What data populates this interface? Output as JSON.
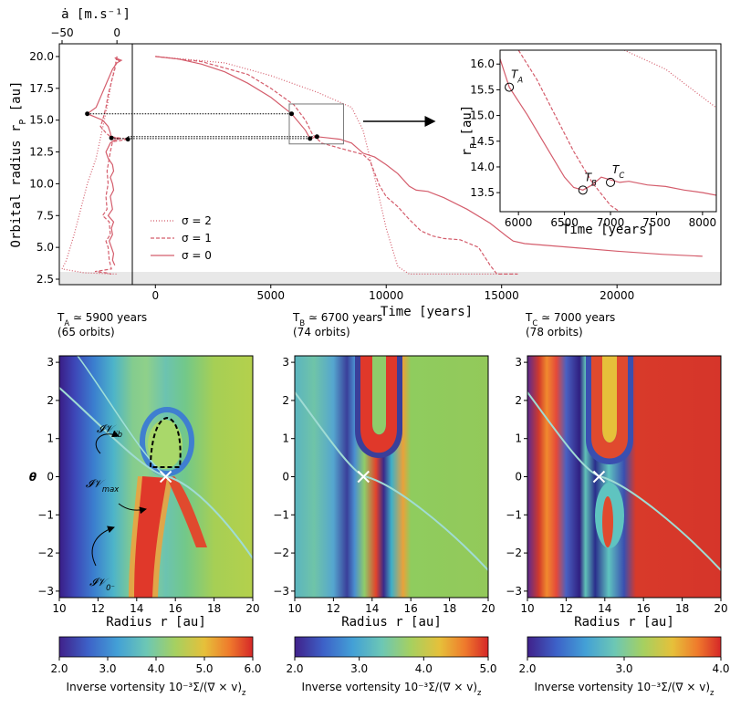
{
  "chart_data": [
    {
      "type": "line",
      "xlabel": "ȧ [m.s⁻¹]",
      "ylabel": "Orbital radius r",
      "ylabel_sub": "P",
      "ylabel_unit": " [au]",
      "xlim": [
        -52.5,
        14
      ],
      "ylim": [
        2.07,
        21.0
      ],
      "xticks": [
        {
          "value": -50,
          "label": "−50"
        },
        0
      ],
      "yticks": [
        2.5,
        {
          "value": 5,
          "label": "5.0"
        },
        7.5,
        {
          "value": 10,
          "label": "10.0"
        },
        12.5,
        {
          "value": 15,
          "label": "15.0"
        },
        17.5,
        {
          "value": 20,
          "label": "20.0"
        }
      ],
      "series": [
        {
          "color": "#d45d6c",
          "style": "dotted",
          "x": [
            0,
            -5,
            -9,
            -14,
            -19,
            -27,
            -33,
            -39,
            -46,
            -50,
            -30,
            0
          ],
          "values": [
            20,
            18,
            16,
            14,
            12,
            10,
            8,
            6,
            4,
            3.3,
            3.0,
            2.9
          ]
        },
        {
          "color": "#d45d6c",
          "style": "dashed",
          "x": [
            0,
            -2,
            -5,
            -8,
            -10,
            -13,
            -15,
            -10,
            -6,
            10,
            -4,
            -6,
            -7,
            -9,
            -8,
            -10,
            -9,
            -13,
            -7,
            -6,
            -10,
            -8,
            -7,
            -5,
            -20,
            -10,
            -5
          ],
          "values": [
            20,
            19,
            18,
            17,
            16,
            15,
            14.5,
            14,
            13.7,
            13.5,
            13.3,
            12.5,
            12,
            11,
            10,
            9,
            8,
            7.5,
            7,
            6,
            5.5,
            5,
            4,
            3.3,
            3.1,
            3.0,
            2.9
          ]
        },
        {
          "color": "#d45d6c",
          "style": "solid",
          "x": [
            -1,
            3,
            -2,
            4,
            0,
            -4,
            -9,
            -14,
            -19,
            -27,
            -13,
            -8,
            -6,
            -5,
            3,
            -3,
            -6,
            -10,
            -8,
            -4,
            -3,
            -6,
            -4,
            -3,
            -6,
            -5,
            -4,
            -8,
            -3,
            -5,
            -4,
            -7,
            -5,
            -3,
            -4,
            -2
          ],
          "values": [
            19.9,
            19.6,
            19.9,
            19.7,
            19.5,
            19.0,
            18.0,
            17.0,
            16.0,
            15.5,
            15.0,
            14.5,
            14.0,
            13.65,
            13.55,
            13.4,
            13.2,
            12.5,
            12.0,
            11.5,
            11.0,
            10.5,
            10.0,
            9.5,
            9.0,
            8.5,
            8.0,
            7.5,
            7.0,
            6.5,
            6.0,
            5.5,
            5.0,
            4.5,
            4.0,
            3.6
          ]
        }
      ],
      "points": {
        "x": [
          -27,
          -5,
          10
        ],
        "values": [
          15.5,
          13.6,
          13.5
        ]
      }
    },
    {
      "type": "line",
      "xlabel": "Time [years]",
      "xlim": [
        -1000,
        24500
      ],
      "ylim": [
        2.07,
        21.0
      ],
      "xticks": [
        0,
        5000,
        10000,
        15000,
        20000
      ],
      "legend": "lower left",
      "series": [
        {
          "name": "σ = 2",
          "color": "#d45d6c",
          "style": "dotted",
          "x": [
            0,
            3000,
            5000,
            7000,
            8500,
            9000,
            9500,
            10000,
            10500,
            11000,
            15700
          ],
          "values": [
            20,
            19.5,
            18.5,
            17.2,
            16.0,
            14.2,
            10.5,
            6.5,
            3.5,
            2.9,
            2.9
          ]
        },
        {
          "name": "σ = 1",
          "color": "#d45d6c",
          "style": "dashed",
          "x": [
            0,
            2000,
            4000,
            5000,
            6000,
            6500,
            6800,
            7200,
            8000,
            9000,
            9300,
            9700,
            10000,
            10500,
            11000,
            11500,
            12000,
            12500,
            13200,
            14000,
            14500,
            14800,
            15700
          ],
          "values": [
            20,
            19.6,
            18.6,
            17.5,
            16.2,
            15.0,
            13.9,
            13.2,
            12.8,
            12.3,
            11.8,
            9.9,
            9.0,
            8.2,
            7.2,
            6.3,
            5.9,
            5.7,
            5.6,
            5.0,
            3.6,
            2.9,
            2.9
          ]
        },
        {
          "name": "σ = 0",
          "color": "#d45d6c",
          "style": "solid",
          "x": [
            0,
            1000,
            2000,
            3000,
            4000,
            5000,
            5900,
            6500,
            6700,
            7000,
            7500,
            8000,
            8500,
            9000,
            9500,
            10000,
            10500,
            11000,
            11300,
            11800,
            12500,
            13500,
            14500,
            15200,
            15500,
            16000,
            18000,
            20000,
            22000,
            23700
          ],
          "values": [
            20,
            19.8,
            19.4,
            18.8,
            17.9,
            16.8,
            15.5,
            14.2,
            13.55,
            13.7,
            13.6,
            13.5,
            13.2,
            12.4,
            12.1,
            11.5,
            10.8,
            9.8,
            9.5,
            9.4,
            8.9,
            8.0,
            6.9,
            5.9,
            5.5,
            5.3,
            5.0,
            4.7,
            4.45,
            4.3
          ]
        }
      ],
      "points": {
        "x": [
          5900,
          6700,
          7000
        ],
        "values": [
          15.5,
          13.55,
          13.7
        ]
      }
    },
    {
      "type": "line",
      "xlabel": "Time [years]",
      "ylabel": "r",
      "ylabel_sub": "P",
      "ylabel_unit": " [au]",
      "xlim": [
        5800,
        8150
      ],
      "ylim": [
        13.13,
        16.27
      ],
      "xticks": [
        6000,
        6500,
        7000,
        7500,
        8000
      ],
      "yticks": [
        13.5,
        {
          "value": 14,
          "label": "14.0"
        },
        14.5,
        {
          "value": 15,
          "label": "15.0"
        },
        15.5,
        {
          "value": 16,
          "label": "16.0"
        }
      ],
      "series": [
        {
          "color": "#d45d6c",
          "style": "dotted",
          "x": [
            7150,
            7600,
            8150
          ],
          "values": [
            16.27,
            15.9,
            15.15
          ]
        },
        {
          "color": "#d45d6c",
          "style": "dashed",
          "x": [
            6000,
            6200,
            6400,
            6600,
            6800,
            7000,
            7100
          ],
          "values": [
            16.27,
            15.7,
            15.0,
            14.3,
            13.7,
            13.25,
            13.13
          ]
        },
        {
          "color": "#d45d6c",
          "style": "solid",
          "x": [
            5800,
            5900,
            6100,
            6300,
            6500,
            6600,
            6700,
            6800,
            6900,
            7000,
            7100,
            7200,
            7400,
            7600,
            7800,
            8000,
            8150
          ],
          "values": [
            16.1,
            15.55,
            15.0,
            14.4,
            13.8,
            13.6,
            13.55,
            13.65,
            13.8,
            13.75,
            13.7,
            13.72,
            13.65,
            13.62,
            13.55,
            13.5,
            13.45
          ]
        }
      ],
      "points": {
        "x": [
          5900,
          6700,
          7000
        ],
        "values": [
          15.55,
          13.55,
          13.7
        ],
        "labels": [
          {
            "text": "T",
            "sub": "A"
          },
          {
            "text": "T",
            "sub": "B"
          },
          {
            "text": "T",
            "sub": "C"
          }
        ]
      }
    },
    {
      "type": "heatmap",
      "label": "T",
      "label_sub": "A",
      "title": " ≃ 5900 years",
      "subtitle": "(65 orbits)",
      "xlabel": "Radius r [au]",
      "ylabel": "θ",
      "xlim": [
        10,
        20
      ],
      "ylim": [
        -3.17,
        3.17
      ],
      "xticks": [
        10,
        12,
        14,
        16,
        18,
        20
      ],
      "yticks": [
        {
          "value": -3,
          "label": "−3"
        },
        {
          "value": -2,
          "label": "−2"
        },
        {
          "value": -1,
          "label": "−1"
        },
        0,
        1,
        2,
        3
      ],
      "planet": {
        "r": 15.5,
        "theta": 0
      },
      "annotations": [
        {
          "text": "𝓘𝒱",
          "sub": "lib"
        },
        {
          "text": "𝓘𝒱",
          "sub": "max"
        },
        {
          "text": "𝓘𝒱",
          "sub": "0⁻"
        }
      ],
      "colorbar": {
        "label": "Inverse vortensity 10⁻³Σ/(∇ × v)",
        "label_sub": "z",
        "lim": [
          2,
          6
        ],
        "ticks": [
          {
            "value": 2,
            "label": "2.0"
          },
          {
            "value": 3,
            "label": "3.0"
          },
          {
            "value": 4,
            "label": "4.0"
          },
          {
            "value": 5,
            "label": "5.0"
          },
          {
            "value": 6,
            "label": "6.0"
          }
        ]
      }
    },
    {
      "type": "heatmap",
      "label": "T",
      "label_sub": "B",
      "title": " ≃ 6700 years",
      "subtitle": "(74 orbits)",
      "xlabel": "Radius r [au]",
      "xlim": [
        10,
        20
      ],
      "ylim": [
        -3.17,
        3.17
      ],
      "xticks": [
        10,
        12,
        14,
        16,
        18,
        20
      ],
      "yticks": [
        {
          "value": -3,
          "label": "−3"
        },
        {
          "value": -2,
          "label": "−2"
        },
        {
          "value": -1,
          "label": "−1"
        },
        0,
        1,
        2,
        3
      ],
      "planet": {
        "r": 13.55,
        "theta": 0
      },
      "colorbar": {
        "label": "Inverse vortensity 10⁻³Σ/(∇ × v)",
        "label_sub": "z",
        "lim": [
          2,
          5
        ],
        "ticks": [
          {
            "value": 2,
            "label": "2.0"
          },
          {
            "value": 3,
            "label": "3.0"
          },
          {
            "value": 4,
            "label": "4.0"
          },
          {
            "value": 5,
            "label": "5.0"
          }
        ]
      }
    },
    {
      "type": "heatmap",
      "label": "T",
      "label_sub": "C",
      "title": " ≃ 7000 years",
      "subtitle": "(78 orbits)",
      "xlabel": "Radius r [au]",
      "xlim": [
        10,
        20
      ],
      "ylim": [
        -3.17,
        3.17
      ],
      "xticks": [
        10,
        12,
        14,
        16,
        18,
        20
      ],
      "yticks": [
        {
          "value": -3,
          "label": "−3"
        },
        {
          "value": -2,
          "label": "−2"
        },
        {
          "value": -1,
          "label": "−1"
        },
        0,
        1,
        2,
        3
      ],
      "planet": {
        "r": 13.7,
        "theta": 0
      },
      "colorbar": {
        "label": "Inverse vortensity 10⁻³Σ/(∇ × v)",
        "label_sub": "z",
        "lim": [
          2,
          4
        ],
        "ticks": [
          {
            "value": 2,
            "label": "2.0"
          },
          {
            "value": 3,
            "label": "3.0"
          },
          {
            "value": 4,
            "label": "4.0"
          }
        ]
      }
    }
  ]
}
